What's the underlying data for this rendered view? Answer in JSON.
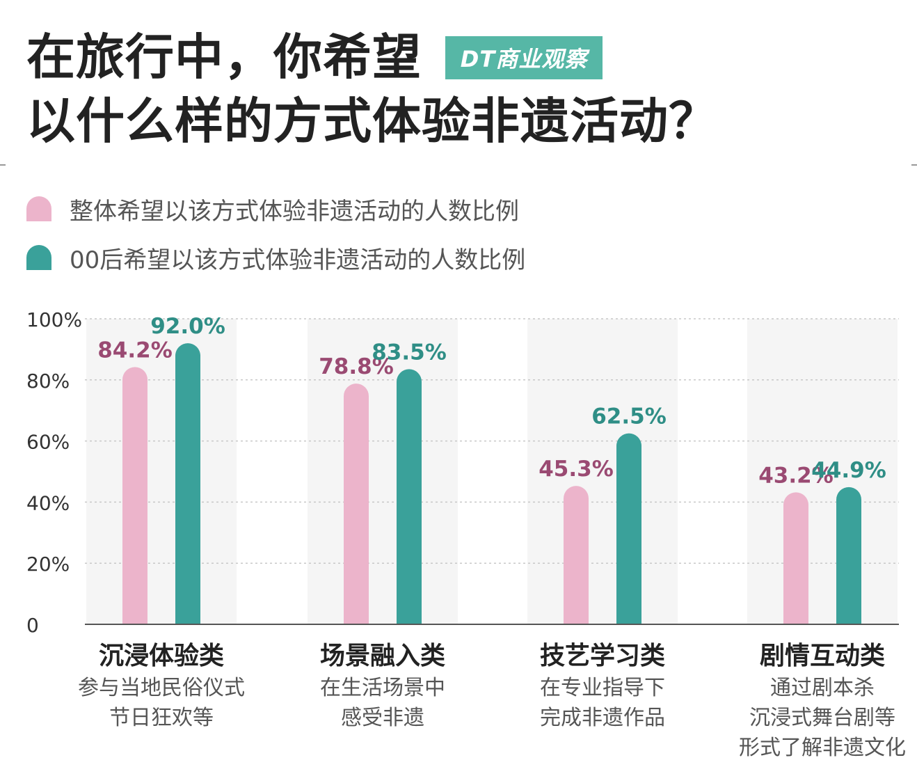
{
  "title_lines": [
    "在旅行中，你希望",
    "以什么样的方式体验非遗活动？"
  ],
  "brand": "DT商业观察",
  "colors": {
    "overall": "#ecb4cb",
    "post00": "#3aa19a",
    "overall_label": "#9a4a72",
    "post00_label": "#2f8e86",
    "band": "#f5f5f5",
    "brand_bg": "#56b7a6"
  },
  "chart_data": {
    "type": "bar",
    "title": "在旅行中，你希望以什么样的方式体验非遗活动？",
    "categories": [
      "沉浸体验类",
      "场景融入类",
      "技艺学习类",
      "剧情互动类"
    ],
    "category_descriptions": [
      [
        "参与当地民俗仪式",
        "节日狂欢等"
      ],
      [
        "在生活场景中",
        "感受非遗"
      ],
      [
        "在专业指导下",
        "完成非遗作品"
      ],
      [
        "通过剧本杀",
        "沉浸式舞台剧等",
        "形式了解非遗文化"
      ]
    ],
    "series": [
      {
        "name": "整体希望以该方式体验非遗活动的人数比例",
        "values": [
          84.2,
          78.8,
          45.3,
          43.2
        ],
        "labels": [
          "84.2%",
          "78.8%",
          "45.3%",
          "43.2%"
        ]
      },
      {
        "name": "00后希望以该方式体验非遗活动的人数比例",
        "values": [
          92.0,
          83.5,
          62.5,
          44.9
        ],
        "labels": [
          "92.0%",
          "83.5%",
          "62.5%",
          "44.9%"
        ]
      }
    ],
    "ylim": [
      0,
      100
    ],
    "yticks": [
      0,
      20,
      40,
      60,
      80,
      100
    ],
    "ytick_labels": [
      "0",
      "20%",
      "40%",
      "60%",
      "80%",
      "100%"
    ],
    "grid": true,
    "legend_position": "top-left"
  }
}
